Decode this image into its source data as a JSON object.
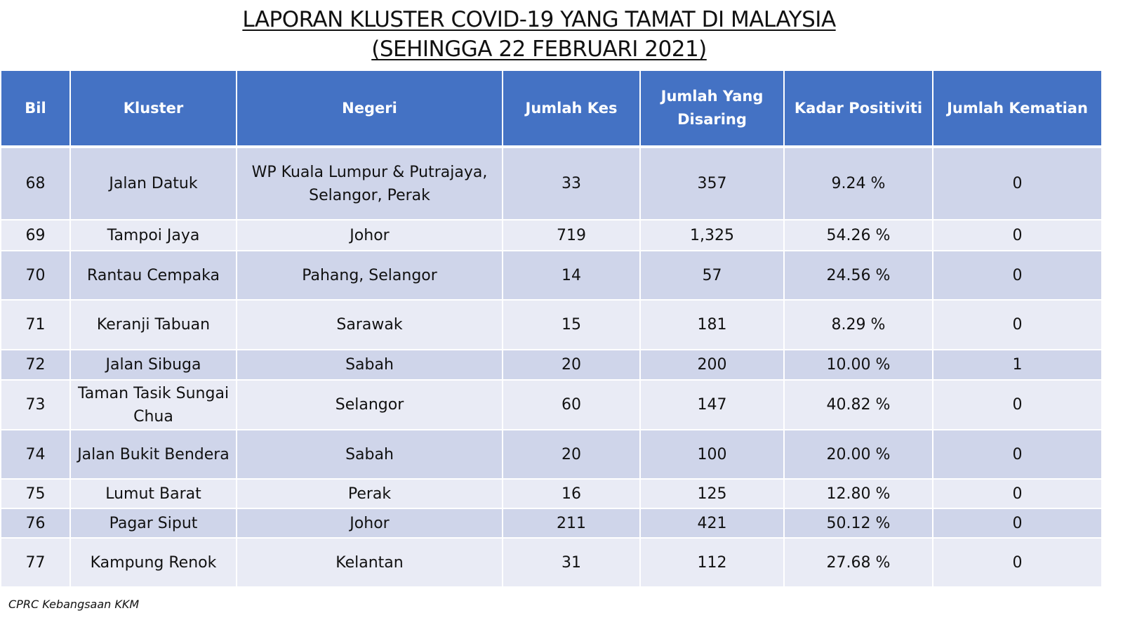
{
  "title": {
    "line1": "LAPORAN KLUSTER COVID-19 YANG TAMAT DI MALAYSIA",
    "line2": "(SEHINGGA  22 FEBRUARI 2021)"
  },
  "colors": {
    "header": "#4472C4",
    "row_dark": "#CFD5EA",
    "row_light": "#E9EBF5"
  },
  "table": {
    "headers": [
      "Bil",
      "Kluster",
      "Negeri",
      "Jumlah Kes",
      "Jumlah Yang Disaring",
      "Kadar Positiviti",
      "Jumlah Kematian"
    ],
    "rows": [
      [
        "68",
        "Jalan Datuk",
        "WP Kuala Lumpur & Putrajaya, Selangor, Perak",
        "33",
        "357",
        "9.24 %",
        "0"
      ],
      [
        "69",
        "Tampoi Jaya",
        "Johor",
        "719",
        "1,325",
        "54.26 %",
        "0"
      ],
      [
        "70",
        "Rantau Cempaka",
        "Pahang, Selangor",
        "14",
        "57",
        "24.56 %",
        "0"
      ],
      [
        "71",
        "Keranji Tabuan",
        "Sarawak",
        "15",
        "181",
        "8.29 %",
        "0"
      ],
      [
        "72",
        "Jalan Sibuga",
        "Sabah",
        "20",
        "200",
        "10.00 %",
        "1"
      ],
      [
        "73",
        "Taman Tasik Sungai Chua",
        "Selangor",
        "60",
        "147",
        "40.82 %",
        "0"
      ],
      [
        "74",
        "Jalan Bukit Bendera",
        "Sabah",
        "20",
        "100",
        "20.00 %",
        "0"
      ],
      [
        "75",
        "Lumut Barat",
        "Perak",
        "16",
        "125",
        "12.80 %",
        "0"
      ],
      [
        "76",
        "Pagar Siput",
        "Johor",
        "211",
        "421",
        "50.12 %",
        "0"
      ],
      [
        "77",
        "Kampung Renok",
        "Kelantan",
        "31",
        "112",
        "27.68 %",
        "0"
      ]
    ]
  },
  "source": "CPRC Kebangsaan KKM"
}
